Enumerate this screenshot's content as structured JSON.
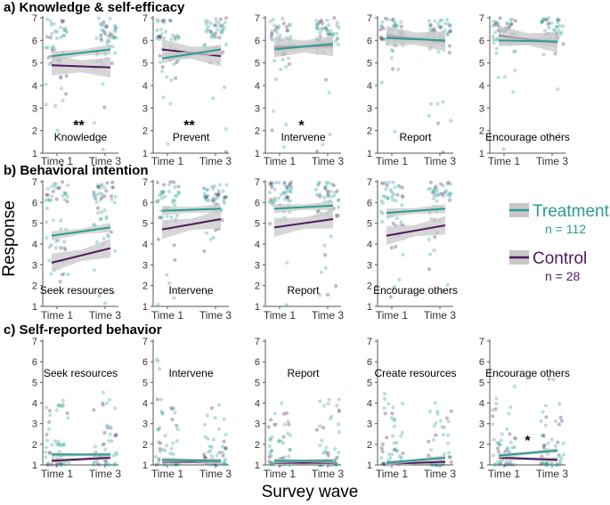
{
  "ylabel": "Response",
  "xlabel": "Survey wave",
  "colors": {
    "treatment": "#2a9d8f",
    "control": "#4b1a5e",
    "band": "#c8c8c8",
    "axis": "#555555"
  },
  "legend": [
    {
      "name": "Treatment",
      "n_label": "n = 112",
      "key": "treatment"
    },
    {
      "name": "Control",
      "n_label": "n = 28",
      "key": "control"
    }
  ],
  "chart_data": [
    {
      "type": "scatter",
      "title": "a) Knowledge & self-efficacy",
      "ylim": [
        1,
        7
      ],
      "yticks": [
        1,
        2,
        3,
        4,
        5,
        6,
        7
      ],
      "categories": [
        "Time 1",
        "Time 3"
      ],
      "panels": [
        {
          "label": "Knowledge",
          "significance": "**",
          "treatment": [
            5.3,
            5.6
          ],
          "control": [
            4.9,
            4.8
          ]
        },
        {
          "label": "Prevent",
          "significance": "**",
          "treatment": [
            5.2,
            5.6
          ],
          "control": [
            5.6,
            5.3
          ]
        },
        {
          "label": "Intervene",
          "significance": "*",
          "treatment": [
            5.6,
            5.85
          ],
          "control": [
            5.7,
            5.75
          ]
        },
        {
          "label": "Report",
          "significance": "",
          "treatment": [
            6.1,
            6.0
          ],
          "control": [
            6.2,
            5.95
          ]
        },
        {
          "label": "Encourage others",
          "significance": "",
          "treatment": [
            6.0,
            5.95
          ],
          "control": [
            6.2,
            5.9
          ]
        }
      ]
    },
    {
      "type": "scatter",
      "title": "b) Behavioral intention",
      "ylim": [
        1,
        7
      ],
      "yticks": [
        1,
        2,
        3,
        4,
        5,
        6,
        7
      ],
      "categories": [
        "Time 1",
        "Time 3"
      ],
      "panels": [
        {
          "label": "Seek resources",
          "significance": "",
          "treatment": [
            4.4,
            4.8
          ],
          "control": [
            3.1,
            3.8
          ]
        },
        {
          "label": "Intervene",
          "significance": "",
          "treatment": [
            5.6,
            5.7
          ],
          "control": [
            4.7,
            5.2
          ]
        },
        {
          "label": "Report",
          "significance": "",
          "treatment": [
            5.7,
            5.85
          ],
          "control": [
            4.8,
            5.2
          ]
        },
        {
          "label": "Encourage others",
          "significance": "",
          "treatment": [
            5.5,
            5.7
          ],
          "control": [
            4.4,
            4.9
          ]
        }
      ]
    },
    {
      "type": "scatter",
      "title": "c) Self-reported behavior",
      "ylim": [
        1,
        7
      ],
      "yticks": [
        1,
        2,
        3,
        4,
        5,
        6,
        7
      ],
      "categories": [
        "Time 1",
        "Time 3"
      ],
      "panels": [
        {
          "label": "Seek resources",
          "significance": "",
          "treatment": [
            1.5,
            1.5
          ],
          "control": [
            1.2,
            1.35
          ]
        },
        {
          "label": "Intervene",
          "significance": "",
          "treatment": [
            1.25,
            1.2
          ],
          "control": [
            1.15,
            1.15
          ]
        },
        {
          "label": "Report",
          "significance": "",
          "treatment": [
            1.2,
            1.2
          ],
          "control": [
            1.1,
            1.1
          ]
        },
        {
          "label": "Create resources",
          "significance": "",
          "treatment": [
            1.1,
            1.35
          ],
          "control": [
            1.05,
            1.15
          ]
        },
        {
          "label": "Encourage others",
          "significance": "*",
          "treatment": [
            1.45,
            1.7
          ],
          "control": [
            1.35,
            1.25
          ]
        }
      ]
    }
  ]
}
